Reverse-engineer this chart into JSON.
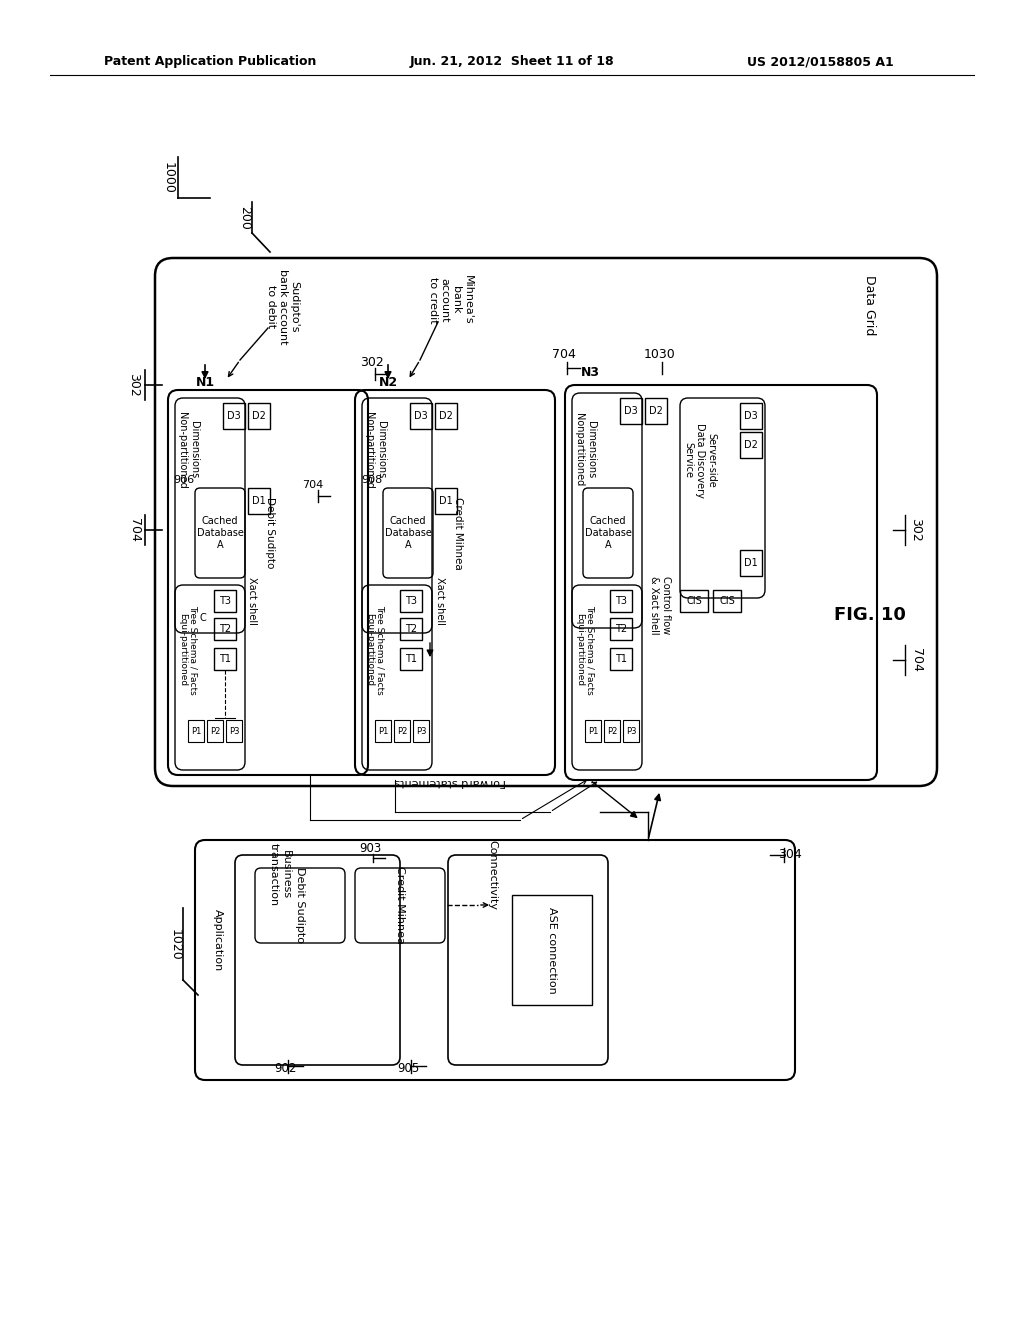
{
  "header_left": "Patent Application Publication",
  "header_center": "Jun. 21, 2012  Sheet 11 of 18",
  "header_right": "US 2012/0158805 A1",
  "bg": "#ffffff"
}
